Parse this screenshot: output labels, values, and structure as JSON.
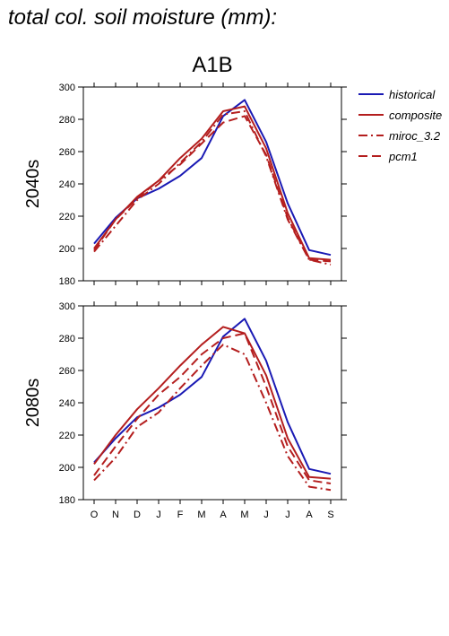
{
  "figure_title": "total col. soil moisture (mm):",
  "scenario_title": "A1B",
  "legend": [
    {
      "label": "historical",
      "color": "#1a1ab4",
      "dash": "solid"
    },
    {
      "label": "composite",
      "color": "#b41e1e",
      "dash": "solid"
    },
    {
      "label": "miroc_3.2",
      "color": "#b41e1e",
      "dash": "dashdot"
    },
    {
      "label": "pcm1",
      "color": "#b41e1e",
      "dash": "dashed"
    }
  ],
  "chart_data": [
    {
      "type": "line",
      "panel_label": "2040s",
      "categories": [
        "O",
        "N",
        "D",
        "J",
        "F",
        "M",
        "A",
        "M",
        "J",
        "J",
        "A",
        "S"
      ],
      "ylim": [
        180,
        300
      ],
      "yticks": [
        180,
        200,
        220,
        240,
        260,
        280,
        300
      ],
      "series": [
        {
          "name": "historical",
          "values": [
            203,
            219,
            231,
            237,
            245,
            256,
            282,
            292,
            266,
            228,
            199,
            196
          ]
        },
        {
          "name": "composite",
          "values": [
            200,
            218,
            232,
            242,
            256,
            268,
            285,
            288,
            262,
            222,
            194,
            193
          ]
        },
        {
          "name": "miroc_3.2",
          "values": [
            198,
            214,
            230,
            240,
            253,
            266,
            283,
            285,
            257,
            218,
            193,
            190
          ]
        },
        {
          "name": "pcm1",
          "values": [
            199,
            218,
            231,
            242,
            252,
            265,
            278,
            282,
            258,
            219,
            193,
            192
          ]
        }
      ]
    },
    {
      "type": "line",
      "panel_label": "2080s",
      "categories": [
        "O",
        "N",
        "D",
        "J",
        "F",
        "M",
        "A",
        "M",
        "J",
        "J",
        "A",
        "S"
      ],
      "ylim": [
        180,
        300
      ],
      "yticks": [
        180,
        200,
        220,
        240,
        260,
        280,
        300
      ],
      "series": [
        {
          "name": "historical",
          "values": [
            203,
            218,
            231,
            237,
            245,
            256,
            281,
            292,
            266,
            228,
            199,
            196
          ]
        },
        {
          "name": "composite",
          "values": [
            202,
            220,
            236,
            249,
            263,
            276,
            287,
            283,
            257,
            218,
            194,
            193
          ]
        },
        {
          "name": "miroc_3.2",
          "values": [
            192,
            206,
            225,
            234,
            249,
            263,
            276,
            270,
            240,
            207,
            188,
            186
          ]
        },
        {
          "name": "pcm1",
          "values": [
            195,
            213,
            230,
            245,
            256,
            270,
            280,
            283,
            250,
            213,
            192,
            190
          ]
        }
      ]
    }
  ]
}
